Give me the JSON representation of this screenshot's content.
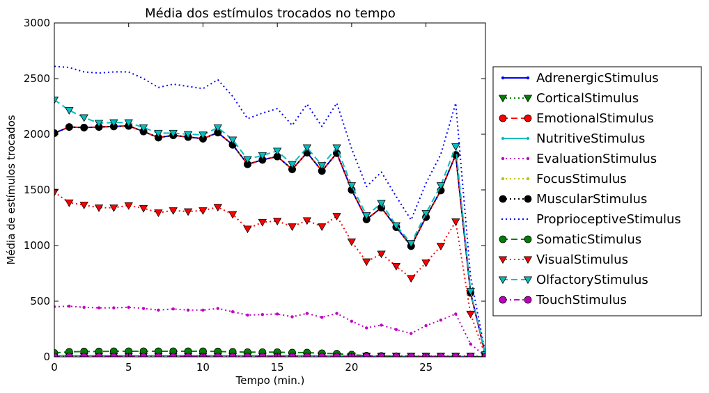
{
  "chart_data": {
    "type": "line",
    "title": "Média dos estímulos trocados no tempo",
    "xlabel": "Tempo (min.)",
    "ylabel": "Média de estímulos trocados",
    "xlim": [
      0,
      29
    ],
    "ylim": [
      0,
      3000
    ],
    "x_ticks": [
      0,
      5,
      10,
      15,
      20,
      25
    ],
    "y_ticks": [
      0,
      500,
      1000,
      1500,
      2000,
      2500,
      3000
    ],
    "grid": false,
    "legend_position": "outside-right",
    "x": [
      0,
      1,
      2,
      3,
      4,
      5,
      6,
      7,
      8,
      9,
      10,
      11,
      12,
      13,
      14,
      15,
      16,
      17,
      18,
      19,
      20,
      21,
      22,
      23,
      24,
      25,
      26,
      27,
      28,
      29
    ],
    "series": [
      {
        "name": "AdrenergicStimulus",
        "color": "#0000ff",
        "linestyle": "solid",
        "marker": "point",
        "values": [
          2010,
          2065,
          2060,
          2065,
          2070,
          2075,
          2025,
          1970,
          1990,
          1975,
          1960,
          2015,
          1905,
          1730,
          1770,
          1800,
          1685,
          1835,
          1670,
          1830,
          1500,
          1235,
          1340,
          1165,
          995,
          1255,
          1495,
          1815,
          575,
          20
        ]
      },
      {
        "name": "CorticalStimulus",
        "color": "#008000",
        "linestyle": "dotted",
        "marker": "triangle-down",
        "values": [
          8,
          8,
          8,
          8,
          8,
          8,
          8,
          8,
          8,
          8,
          8,
          8,
          8,
          8,
          8,
          8,
          8,
          8,
          8,
          8,
          8,
          8,
          8,
          8,
          8,
          8,
          8,
          8,
          8,
          2
        ]
      },
      {
        "name": "EmotionalStimulus",
        "color": "#ff0000",
        "linestyle": "dashed",
        "marker": "circle",
        "values": [
          2010,
          2065,
          2060,
          2065,
          2070,
          2075,
          2025,
          1970,
          1990,
          1975,
          1960,
          2015,
          1905,
          1730,
          1770,
          1800,
          1685,
          1835,
          1670,
          1830,
          1500,
          1235,
          1340,
          1165,
          995,
          1255,
          1495,
          1815,
          575,
          20
        ]
      },
      {
        "name": "NutritiveStimulus",
        "color": "#00bfbf",
        "linestyle": "solid",
        "marker": "point",
        "values": [
          12,
          12,
          12,
          12,
          12,
          12,
          12,
          12,
          12,
          12,
          12,
          12,
          12,
          12,
          12,
          12,
          12,
          12,
          10,
          10,
          8,
          6,
          6,
          5,
          5,
          5,
          5,
          5,
          3,
          1
        ]
      },
      {
        "name": "EvaluationStimulus",
        "color": "#bf00bf",
        "linestyle": "dotted",
        "marker": "point",
        "values": [
          450,
          455,
          445,
          440,
          440,
          445,
          435,
          420,
          430,
          420,
          420,
          435,
          405,
          375,
          380,
          385,
          360,
          390,
          355,
          390,
          320,
          260,
          285,
          245,
          210,
          280,
          330,
          385,
          115,
          5
        ]
      },
      {
        "name": "FocusStimulus",
        "color": "#bfbf00",
        "linestyle": "dotted",
        "marker": "point",
        "values": [
          3,
          3,
          3,
          3,
          3,
          3,
          3,
          3,
          3,
          3,
          3,
          3,
          3,
          3,
          3,
          3,
          3,
          3,
          3,
          3,
          3,
          3,
          3,
          3,
          3,
          3,
          3,
          3,
          3,
          1
        ]
      },
      {
        "name": "MuscularStimulus",
        "color": "#000000",
        "linestyle": "dotted",
        "marker": "circle",
        "values": [
          2010,
          2065,
          2060,
          2065,
          2070,
          2075,
          2025,
          1970,
          1990,
          1975,
          1960,
          2015,
          1905,
          1730,
          1770,
          1800,
          1685,
          1835,
          1670,
          1830,
          1500,
          1235,
          1340,
          1165,
          995,
          1255,
          1495,
          1815,
          575,
          20
        ]
      },
      {
        "name": "ProprioceptiveStimulus",
        "color": "#0000ff",
        "linestyle": "dotted",
        "marker": "none",
        "values": [
          2610,
          2600,
          2560,
          2550,
          2560,
          2560,
          2500,
          2420,
          2450,
          2430,
          2410,
          2490,
          2340,
          2140,
          2190,
          2230,
          2080,
          2270,
          2070,
          2280,
          1870,
          1530,
          1660,
          1440,
          1230,
          1560,
          1820,
          2280,
          720,
          30
        ]
      },
      {
        "name": "SomaticStimulus",
        "color": "#008000",
        "linestyle": "dashed",
        "marker": "circle",
        "values": [
          35,
          45,
          48,
          48,
          50,
          50,
          50,
          50,
          50,
          50,
          50,
          48,
          45,
          42,
          42,
          42,
          38,
          38,
          32,
          28,
          20,
          10,
          8,
          5,
          3,
          3,
          3,
          3,
          3,
          0
        ]
      },
      {
        "name": "VisualStimulus",
        "color": "#ff0000",
        "linestyle": "dotted",
        "marker": "triangle-down",
        "values": [
          1480,
          1385,
          1365,
          1340,
          1340,
          1360,
          1335,
          1295,
          1315,
          1305,
          1315,
          1345,
          1280,
          1150,
          1210,
          1220,
          1170,
          1225,
          1170,
          1265,
          1035,
          855,
          925,
          815,
          705,
          845,
          995,
          1215,
          385,
          10
        ]
      },
      {
        "name": "OlfactoryStimulus",
        "color": "#00bfbf",
        "linestyle": "dashed",
        "marker": "triangle-down",
        "values": [
          2310,
          2215,
          2150,
          2100,
          2105,
          2105,
          2060,
          2010,
          2010,
          2000,
          1995,
          2060,
          1950,
          1775,
          1810,
          1850,
          1730,
          1880,
          1720,
          1880,
          1540,
          1270,
          1380,
          1180,
          1020,
          1290,
          1540,
          1890,
          590,
          20
        ]
      },
      {
        "name": "TouchStimulus",
        "color": "#bf00bf",
        "linestyle": "dashdot",
        "marker": "circle",
        "values": [
          3,
          3,
          3,
          3,
          3,
          3,
          3,
          3,
          3,
          3,
          3,
          3,
          3,
          3,
          3,
          3,
          3,
          3,
          3,
          3,
          3,
          3,
          3,
          3,
          3,
          3,
          3,
          3,
          3,
          0
        ]
      }
    ]
  }
}
